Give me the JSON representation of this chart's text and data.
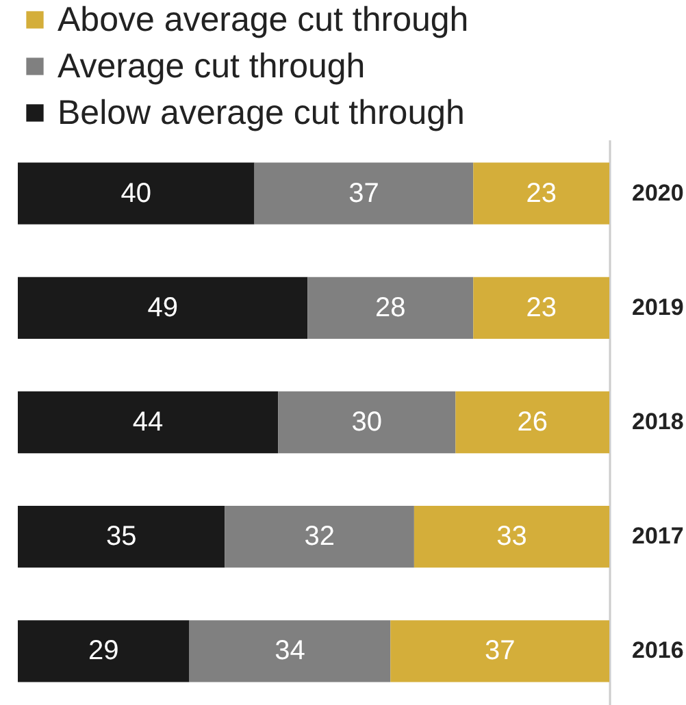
{
  "chart_data": {
    "type": "bar",
    "orientation": "horizontal",
    "stacked": true,
    "data_labels": true,
    "legend": "top left",
    "categories": [
      "2020",
      "2019",
      "2018",
      "2017",
      "2016"
    ],
    "series": [
      {
        "name": "Below average cut through",
        "color": "#1a1a1a",
        "values": [
          40,
          49,
          44,
          35,
          29
        ]
      },
      {
        "name": "Average cut through",
        "color": "#808080",
        "values": [
          37,
          28,
          30,
          32,
          34
        ]
      },
      {
        "name": "Above average cut through",
        "color": "#d4ae3a",
        "values": [
          23,
          23,
          26,
          33,
          37
        ]
      }
    ]
  }
}
